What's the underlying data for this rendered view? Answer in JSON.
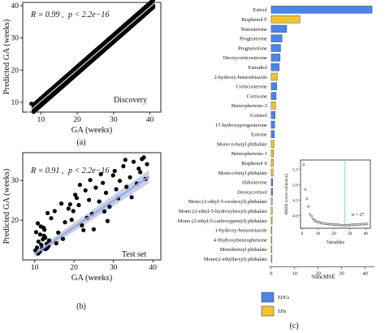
{
  "panel_captions": [
    "(a)",
    "(b)",
    "(c)"
  ],
  "chart_data": [
    {
      "type": "scatter",
      "panel": "(a)",
      "annotation": "R = 0.99 , p < 2.2e−16",
      "stat_r": "R = 0.99 ,",
      "stat_p": "p < 2.2e−16",
      "label": "Discovery",
      "xlabel": "GA (weeks)",
      "ylabel": "Predicted GA (weeks)",
      "xlim": [
        5,
        43
      ],
      "ylim": [
        7,
        41
      ],
      "xticks": [
        10,
        20,
        30,
        40
      ],
      "yticks": [
        10,
        20,
        30,
        40
      ],
      "tick_labels_x": [
        "10",
        "20",
        "30",
        "40"
      ],
      "tick_labels_y": [
        "10",
        "20",
        "30",
        "40"
      ],
      "fit_line": {
        "x": [
          6,
          42
        ],
        "y": [
          6.5,
          41.5
        ]
      },
      "points_x": [
        7.4,
        9.2,
        10.1,
        10.8,
        11.5,
        12.3,
        12.9,
        13.6,
        14.2,
        15.0,
        15.7,
        16.3,
        17.1,
        17.8,
        18.5,
        19.2,
        19.9,
        20.6,
        21.4,
        22.1,
        22.8,
        23.5,
        24.3,
        25.0,
        25.7,
        26.4,
        27.2,
        27.9,
        28.6,
        29.3,
        30.1,
        30.8,
        31.5,
        32.2,
        33.0,
        33.7,
        34.4,
        35.1,
        35.9,
        36.6,
        37.3,
        38.0,
        38.8,
        39.5,
        40.2,
        40.9,
        11.0,
        13.0,
        15.2,
        17.5,
        19.6,
        21.8,
        24.0,
        26.1,
        28.3,
        30.5,
        32.6,
        34.8,
        37.0,
        39.1,
        12.1,
        14.4,
        16.6,
        18.9,
        21.0,
        23.2,
        25.4,
        27.6,
        29.8,
        32.0,
        34.1,
        36.3,
        38.5,
        40.6
      ],
      "points_y": [
        9.6,
        10.2,
        11.3,
        11.2,
        12.8,
        12.0,
        13.7,
        14.0,
        15.1,
        14.6,
        16.2,
        16.9,
        16.4,
        18.3,
        18.7,
        18.9,
        20.4,
        20.2,
        22.1,
        21.5,
        23.4,
        23.3,
        24.8,
        24.6,
        26.1,
        25.7,
        27.6,
        27.5,
        29.0,
        28.6,
        30.5,
        30.2,
        31.9,
        31.6,
        33.4,
        33.0,
        34.8,
        34.6,
        36.2,
        36.0,
        37.5,
        37.3,
        38.6,
        38.9,
        39.6,
        39.8,
        10.3,
        12.6,
        14.4,
        18.0,
        18.8,
        22.6,
        23.1,
        27.0,
        27.5,
        31.2,
        31.8,
        35.5,
        36.3,
        39.8,
        11.6,
        13.5,
        17.4,
        18.1,
        21.9,
        22.4,
        26.2,
        26.8,
        30.6,
        31.2,
        34.9,
        35.4,
        39.1,
        40.1
      ]
    },
    {
      "type": "scatter",
      "panel": "(b)",
      "annotation": "R = 0.91 , p < 2.2e−16",
      "stat_r": "R = 0.91 ,",
      "stat_p": "p < 2.2e−16",
      "label": "Test set",
      "xlabel": "GA (weeks)",
      "ylabel": "Predicted GA (weeks)",
      "xlim": [
        7,
        42
      ],
      "ylim": [
        10,
        37
      ],
      "xticks": [
        10,
        20,
        30,
        40
      ],
      "yticks": [
        20,
        30
      ],
      "tick_labels_x": [
        "10",
        "20",
        "30",
        "40"
      ],
      "tick_labels_y": [
        "20",
        "30"
      ],
      "fit_line": {
        "x": [
          10,
          39
        ],
        "y": [
          11.5,
          31.0
        ]
      },
      "points_x": [
        10.2,
        10.6,
        11.0,
        11.3,
        11.7,
        12.1,
        12.4,
        12.8,
        13.1,
        13.5,
        10.4,
        10.9,
        11.4,
        11.9,
        12.3,
        12.7,
        13.2,
        13.7,
        10.8,
        11.6,
        12.5,
        13.3,
        14.2,
        15.1,
        16.0,
        16.8,
        17.7,
        18.6,
        19.4,
        20.3,
        21.2,
        22.0,
        22.9,
        23.8,
        24.6,
        25.5,
        26.4,
        27.3,
        28.1,
        29.0,
        29.9,
        30.7,
        31.6,
        32.5,
        33.3,
        34.2,
        35.1,
        35.9,
        36.8,
        37.7,
        38.5,
        19.8,
        20.7,
        21.5,
        22.4,
        24.1,
        26.8,
        28.5,
        30.3,
        33.0,
        34.6,
        36.4,
        38.1,
        15.5,
        17.2,
        19.0,
        23.3,
        25.0,
        27.7,
        31.2,
        37.2
      ],
      "points_y": [
        12.4,
        13.1,
        14.6,
        12.0,
        13.8,
        15.2,
        16.1,
        12.7,
        14.1,
        13.5,
        17.0,
        11.6,
        16.4,
        12.9,
        18.1,
        15.6,
        13.0,
        14.9,
        19.2,
        18.4,
        17.6,
        21.8,
        20.5,
        22.3,
        16.9,
        24.2,
        19.5,
        22.9,
        20.1,
        26.4,
        23.8,
        18.7,
        27.5,
        25.1,
        21.6,
        28.2,
        24.7,
        29.4,
        26.9,
        23.4,
        31.3,
        27.8,
        29.9,
        33.6,
        28.4,
        30.8,
        34.7,
        29.2,
        32.1,
        35.8,
        34.1,
        22.3,
        25.6,
        28.9,
        17.5,
        30.1,
        31.6,
        19.8,
        32.4,
        35.2,
        25.8,
        33.0,
        30.4,
        14.2,
        15.3,
        24.0,
        20.6,
        17.7,
        22.2,
        25.5,
        35.4
      ]
    },
    {
      "type": "bar",
      "panel": "(c)",
      "orientation": "horizontal",
      "xlabel": "%IncMSE",
      "xlim": [
        -1,
        44
      ],
      "xticks": [
        0,
        10,
        20,
        30,
        40
      ],
      "tick_labels_x": [
        "0",
        "10",
        "20",
        "30",
        "40"
      ],
      "categories": [
        "Estriol",
        "Bisphenol F",
        "Testosterone",
        "Progesterone",
        "Pregnenolone",
        "Deoxycorticosterone",
        "Estradiol",
        "2-hydroxy-benzothiazole",
        "Corticosterone",
        "Cortisone",
        "Benzophenone-3",
        "Cortisol",
        "17-hydroxyprogesterone",
        "Estrone",
        "Mono-n-butyl phthalate",
        "Benzophenone-1",
        "Bisphenol S",
        "Mono-i-butyl phthalate",
        "Aldosterone",
        "Deoxycortisol",
        "Mono (2-ethyl-5-oxohexyl) phthalate",
        "Mono (2-ethyl-5-hydroxyhexyl) phthalate",
        "Mono (2-ethyl-5-carboxypentyl) phthalate",
        "1-hydroxy-benzotriazole",
        "4-Hydroxybenzophenone",
        "Monobenzyl phthalate",
        "Mono(2-ethylhexyl) phthalate"
      ],
      "values": [
        43.0,
        12.3,
        6.6,
        4.6,
        4.0,
        3.8,
        3.4,
        2.6,
        2.4,
        2.1,
        1.9,
        1.7,
        1.5,
        1.4,
        1.2,
        1.0,
        0.9,
        0.8,
        0.7,
        0.6,
        0.5,
        0.45,
        0.4,
        0.3,
        0.25,
        0.2,
        0.15
      ],
      "groups": [
        "EDCs",
        "EHs",
        "EDCs",
        "EDCs",
        "EDCs",
        "EDCs",
        "EDCs",
        "EHs",
        "EDCs",
        "EDCs",
        "EHs",
        "EDCs",
        "EDCs",
        "EDCs",
        "EHs",
        "EHs",
        "EHs",
        "EHs",
        "EDCs",
        "EDCs",
        "EHs",
        "EHs",
        "EHs",
        "EHs",
        "EHs",
        "EHs",
        "EHs"
      ],
      "colors": {
        "EDCs": "#4a86e8",
        "EHs": "#f1c232"
      },
      "legend": [
        "EDCs",
        "EHs"
      ],
      "legend_placement": "bottom-left"
    },
    {
      "type": "scatter",
      "panel": "(c) inset",
      "xlabel": "Variables",
      "ylabel": "RMSE (cross-validation)",
      "annotation": "n = 27",
      "xlim": [
        -1,
        43
      ],
      "ylim": [
        3.6,
        5.8
      ],
      "xticks": [
        0,
        10,
        20,
        30,
        40
      ],
      "yticks": [
        4.0,
        4.5,
        5.0,
        5.5
      ],
      "tick_labels_x": [
        "0",
        "10",
        "20",
        "30",
        "40"
      ],
      "tick_labels_y": [
        "4.0",
        "4.5",
        "5.0",
        "5.5"
      ],
      "vline_x": 27,
      "vline_color": "#7fd3c7",
      "x": [
        1,
        2,
        3,
        4,
        5,
        6,
        7,
        8,
        9,
        10,
        11,
        12,
        13,
        14,
        15,
        16,
        17,
        18,
        19,
        20,
        21,
        22,
        23,
        24,
        25,
        26,
        27,
        28,
        29,
        30,
        31,
        32,
        33,
        34,
        35,
        36,
        37,
        38,
        39,
        40,
        41
      ],
      "y": [
        5.65,
        4.85,
        4.55,
        4.3,
        4.05,
        3.98,
        3.9,
        3.85,
        3.82,
        3.8,
        3.78,
        3.77,
        3.76,
        3.75,
        3.74,
        3.74,
        3.73,
        3.73,
        3.72,
        3.72,
        3.71,
        3.71,
        3.71,
        3.7,
        3.7,
        3.7,
        3.69,
        3.7,
        3.7,
        3.7,
        3.71,
        3.71,
        3.71,
        3.72,
        3.72,
        3.72,
        3.73,
        3.73,
        3.73,
        3.74,
        3.74
      ]
    }
  ]
}
